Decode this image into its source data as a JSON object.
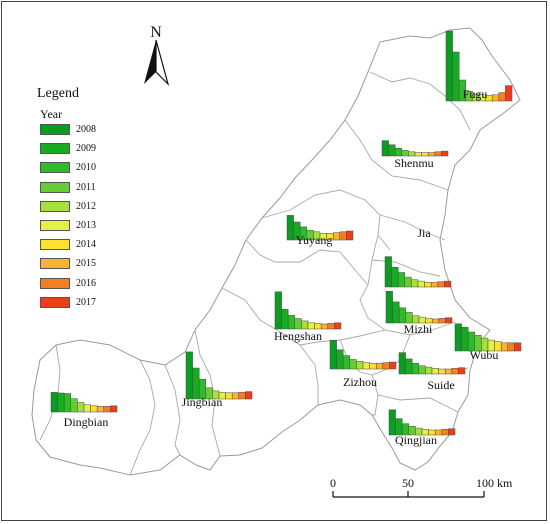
{
  "legend": {
    "title": "Legend",
    "subtitle": "Year",
    "items": [
      {
        "label": "2008",
        "color": "#0a9d22"
      },
      {
        "label": "2009",
        "color": "#17ab21"
      },
      {
        "label": "2010",
        "color": "#2fbb2a"
      },
      {
        "label": "2011",
        "color": "#66cc33"
      },
      {
        "label": "2012",
        "color": "#a6e03a"
      },
      {
        "label": "2013",
        "color": "#e3f04a"
      },
      {
        "label": "2014",
        "color": "#fde12d"
      },
      {
        "label": "2015",
        "color": "#f9b233"
      },
      {
        "label": "2016",
        "color": "#f47f20"
      },
      {
        "label": "2017",
        "color": "#ec3e1d"
      }
    ]
  },
  "north_arrow": {
    "label": "N"
  },
  "scale_bar": {
    "ticks": [
      "0",
      "50",
      "100 km"
    ]
  },
  "regions": [
    {
      "name": "Fugu",
      "values": [
        10,
        7,
        3,
        1.4,
        1,
        0.9,
        0.8,
        0.9,
        1.2,
        2.2
      ]
    },
    {
      "name": "Shenmu",
      "values": [
        2.2,
        1.6,
        1.1,
        0.8,
        0.6,
        0.5,
        0.5,
        0.5,
        0.6,
        0.7
      ]
    },
    {
      "name": "Yuyang",
      "values": [
        3,
        2.2,
        1.6,
        1.2,
        1,
        0.8,
        0.8,
        0.9,
        1,
        1.1
      ]
    },
    {
      "name": "Jia",
      "values": [
        4.6,
        3,
        2.2,
        1.5,
        1.1,
        0.9,
        0.7,
        0.7,
        0.8,
        0.9
      ]
    },
    {
      "name": "Mizhi",
      "values": [
        4.8,
        3.2,
        2.3,
        1.6,
        1.1,
        0.9,
        0.7,
        0.6,
        0.7,
        0.8
      ]
    },
    {
      "name": "Wubu",
      "values": [
        4,
        3.5,
        2.8,
        2.3,
        1.9,
        1.6,
        1.4,
        1.2,
        1.2,
        1.2
      ]
    },
    {
      "name": "Hengshan",
      "values": [
        6,
        3.2,
        2.2,
        1.7,
        1.3,
        1,
        0.9,
        0.8,
        0.9,
        1
      ]
    },
    {
      "name": "Zizhou",
      "values": [
        4.5,
        3,
        2.1,
        1.5,
        1.2,
        1,
        0.9,
        0.9,
        1,
        1.1
      ]
    },
    {
      "name": "Suide",
      "values": [
        3.4,
        2.4,
        1.7,
        1.3,
        1.1,
        0.9,
        0.8,
        0.8,
        0.9,
        1
      ]
    },
    {
      "name": "Jingbian",
      "values": [
        7.6,
        5,
        3.2,
        1.8,
        1.3,
        1.1,
        1,
        1,
        1.1,
        1.2
      ]
    },
    {
      "name": "Dingbian",
      "values": [
        3.5,
        3.4,
        3.3,
        2.4,
        1.7,
        1.3,
        1.1,
        1,
        1,
        1.1
      ]
    },
    {
      "name": "Qingjian",
      "values": [
        4,
        2.6,
        1.8,
        1.4,
        1.1,
        0.9,
        0.8,
        0.8,
        0.9,
        1
      ]
    }
  ]
}
